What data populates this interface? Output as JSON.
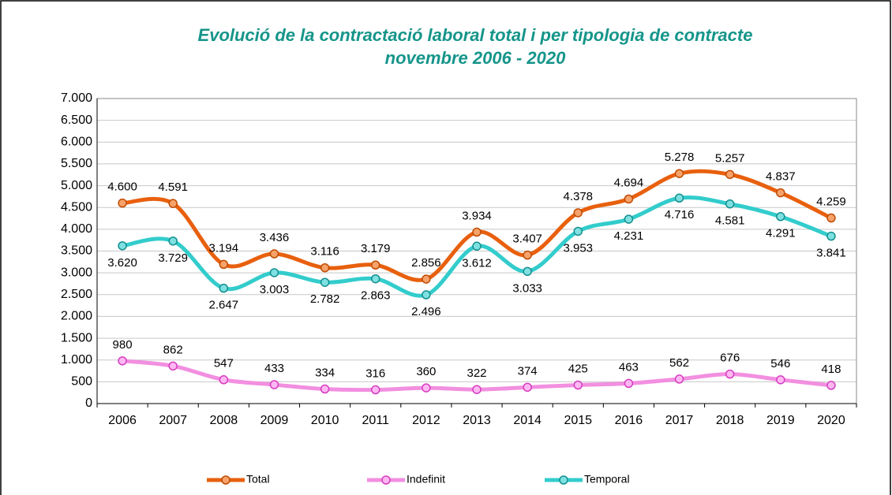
{
  "chart_data": {
    "type": "line",
    "title": "Evolució de la contractació laboral total i per tipologia de contracte",
    "subtitle": "novembre 2006 - 2020",
    "categories": [
      "2006",
      "2007",
      "2008",
      "2009",
      "2010",
      "2011",
      "2012",
      "2013",
      "2014",
      "2015",
      "2016",
      "2017",
      "2018",
      "2019",
      "2020"
    ],
    "series": [
      {
        "name": "Total",
        "color": "#e8600e",
        "values": [
          4600,
          4591,
          3194,
          3436,
          3116,
          3179,
          2856,
          3934,
          3407,
          4378,
          4694,
          5278,
          5257,
          4837,
          4259
        ],
        "value_labels": [
          "4.600",
          "4.591",
          "3.194",
          "3.436",
          "3.116",
          "3.179",
          "2.856",
          "3.934",
          "3.407",
          "4.378",
          "4.694",
          "5.278",
          "5.257",
          "4.837",
          "4.259"
        ]
      },
      {
        "name": "Indefinit",
        "color": "#f28fe0",
        "values": [
          980,
          862,
          547,
          433,
          334,
          316,
          360,
          322,
          374,
          425,
          463,
          562,
          676,
          546,
          418
        ]
      },
      {
        "name": "Temporal",
        "color": "#33cccc",
        "values": [
          3620,
          3729,
          2647,
          3003,
          2782,
          2863,
          2496,
          3612,
          3033,
          3953,
          4231,
          4716,
          4581,
          4291,
          3841
        ],
        "value_labels": [
          "3.620",
          "3.729",
          "2.647",
          "3.003",
          "2.782",
          "2.863",
          "2.496",
          "3.612",
          "3.033",
          "3.953",
          "4.231",
          "4.716",
          "4.581",
          "4.291",
          "3.841"
        ]
      }
    ],
    "ylim": [
      0,
      7000
    ],
    "yticks": [
      0,
      500,
      {
        "value": 1000,
        "label": "1.000"
      },
      {
        "value": 1500,
        "label": "1.500"
      },
      {
        "value": 2000,
        "label": "2.000"
      },
      {
        "value": 2500,
        "label": "2.500"
      },
      {
        "value": 3000,
        "label": "3.000"
      },
      {
        "value": 3500,
        "label": "3.500"
      },
      {
        "value": 4000,
        "label": "4.000"
      },
      {
        "value": 4500,
        "label": "4.500"
      },
      {
        "value": 5000,
        "label": "5.000"
      },
      {
        "value": 5500,
        "label": "5.500"
      },
      {
        "value": 6000,
        "label": "6.000"
      },
      {
        "value": 6500,
        "label": "6.500"
      },
      {
        "value": 7000,
        "label": "7.000"
      }
    ],
    "grid": true,
    "legend": "bottom"
  }
}
